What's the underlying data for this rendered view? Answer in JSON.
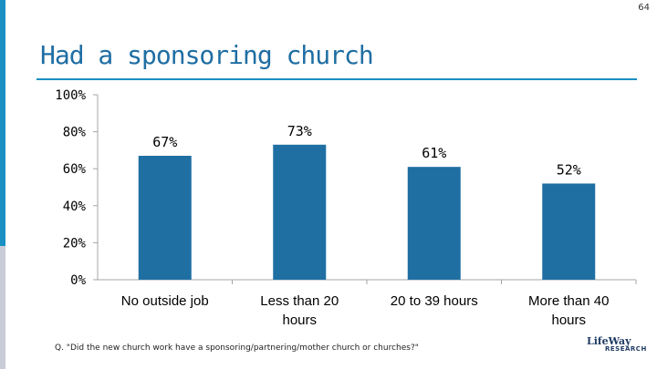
{
  "page_number": "64",
  "title": "Had a sponsoring church",
  "footnote": "Q. \"Did the new church work have a sponsoring/partnering/mother church or churches?\"",
  "logo": {
    "name": "LifeWay",
    "sub": "RESEARCH"
  },
  "colors": {
    "bar": "#1f6fa3",
    "title": "#1f6ea3",
    "accent": "#1a8fc4",
    "axis": "#a6a6a6"
  },
  "chart_data": {
    "type": "bar",
    "categories": [
      "No outside job",
      "Less than 20 hours",
      "20 to 39 hours",
      "More than 40 hours"
    ],
    "category_lines": [
      [
        "No outside job"
      ],
      [
        "Less than 20",
        "hours"
      ],
      [
        "20 to 39 hours"
      ],
      [
        "More than 40",
        "hours"
      ]
    ],
    "values": [
      67,
      73,
      61,
      52
    ],
    "data_labels": [
      "67%",
      "73%",
      "61%",
      "52%"
    ],
    "yticks": [
      "0%",
      "20%",
      "40%",
      "60%",
      "80%",
      "100%"
    ],
    "ylim": [
      0,
      100
    ],
    "title": "Had a sponsoring church",
    "xlabel": "",
    "ylabel": "",
    "grid": false,
    "legend": "none"
  }
}
